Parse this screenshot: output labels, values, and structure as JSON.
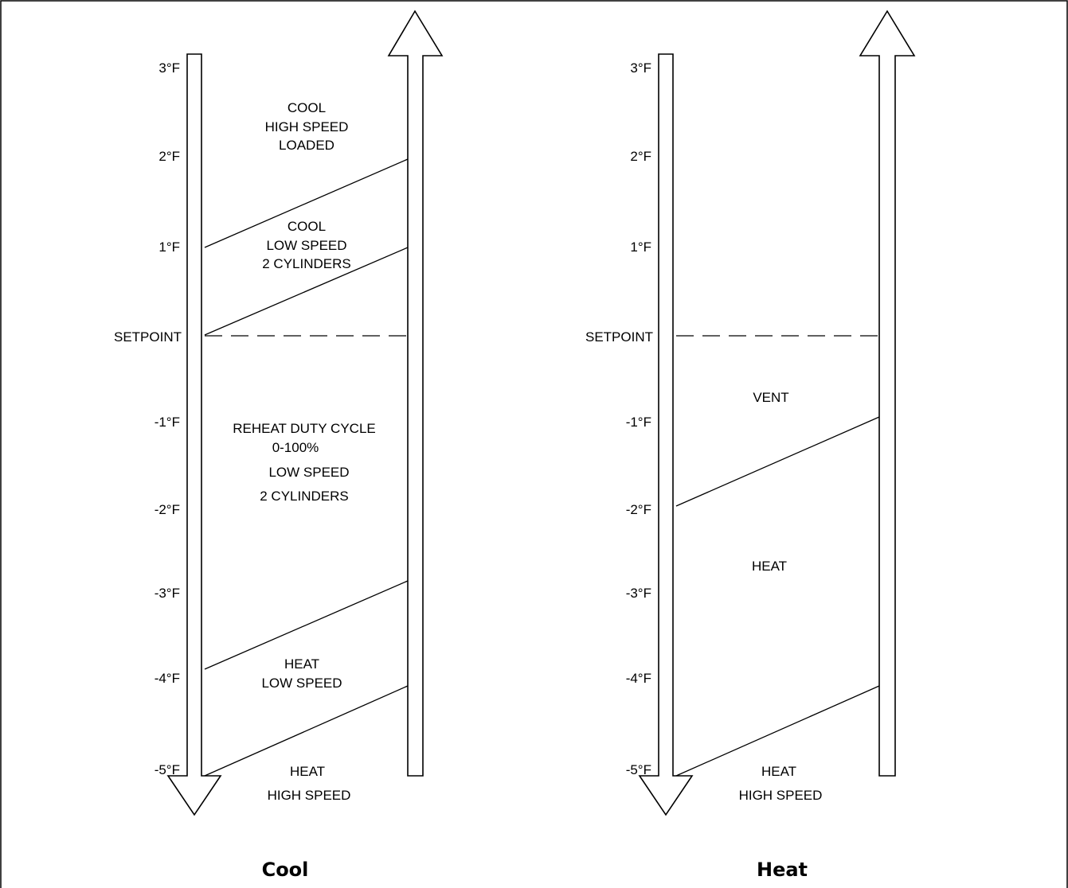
{
  "panels": [
    {
      "title": "Cool",
      "ticks": [
        "3°F",
        "2°F",
        "1°F",
        "SETPOINT",
        "-1°F",
        "-2°F",
        "-3°F",
        "-4°F",
        "-5°F"
      ],
      "regions": [
        {
          "lines": [
            "COOL",
            "HIGH SPEED",
            "LOADED"
          ]
        },
        {
          "lines": [
            "COOL",
            "LOW SPEED",
            "2 CYLINDERS"
          ]
        },
        {
          "lines": [
            "REHEAT DUTY CYCLE",
            "0-100%",
            "LOW SPEED",
            "2 CYLINDERS"
          ]
        },
        {
          "lines": [
            "HEAT",
            "LOW SPEED"
          ]
        },
        {
          "lines": [
            "HEAT",
            "HIGH SPEED"
          ]
        }
      ]
    },
    {
      "title": "Heat",
      "ticks": [
        "3°F",
        "2°F",
        "1°F",
        "SETPOINT",
        "-1°F",
        "-2°F",
        "-3°F",
        "-4°F",
        "-5°F"
      ],
      "regions": [
        {
          "lines": [
            "VENT"
          ]
        },
        {
          "lines": [
            "HEAT"
          ]
        },
        {
          "lines": [
            "HEAT",
            "HIGH SPEED"
          ]
        }
      ]
    }
  ]
}
